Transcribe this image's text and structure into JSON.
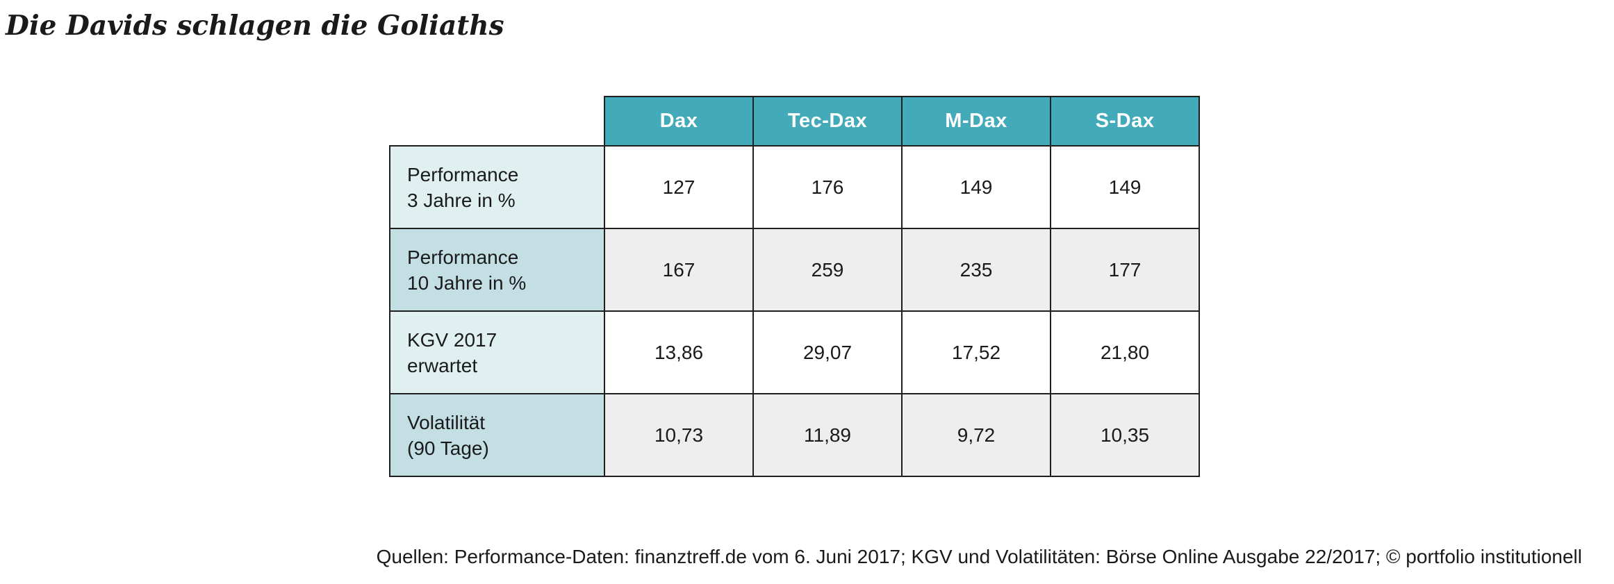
{
  "title": "Die Davids schlagen die Goliaths",
  "chart_data": {
    "type": "table",
    "title": "Die Davids schlagen die Goliaths",
    "columns": [
      "Dax",
      "Tec-Dax",
      "M-Dax",
      "S-Dax"
    ],
    "rows": [
      {
        "label_line1": "Performance",
        "label_line2": "3 Jahre in %",
        "values": [
          "127",
          "176",
          "149",
          "149"
        ]
      },
      {
        "label_line1": "Performance",
        "label_line2": "10 Jahre in %",
        "values": [
          "167",
          "259",
          "235",
          "177"
        ]
      },
      {
        "label_line1": "KGV 2017",
        "label_line2": "erwartet",
        "values": [
          "13,86",
          "29,07",
          "17,52",
          "21,80"
        ]
      },
      {
        "label_line1": "Volatilität",
        "label_line2": "(90 Tage)",
        "values": [
          "10,73",
          "11,89",
          "9,72",
          "10,35"
        ]
      }
    ],
    "source": "Quellen: Performance-Daten: finanztreff.de vom 6. Juni 2017; KGV und Volatilitäten: Börse Online Ausgabe 22/2017; © portfolio institutionell"
  },
  "colors": {
    "header_bg": "#42aab8",
    "header_text": "#ffffff",
    "row_label_light": "#e0f0f0",
    "row_label_dark": "#c3dfe3",
    "cell_alt": "#eeeeee"
  }
}
